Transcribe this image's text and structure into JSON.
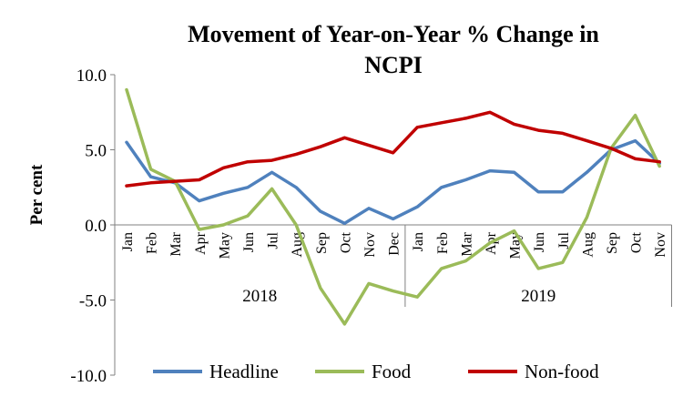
{
  "chart_data": {
    "type": "line",
    "title": "Movement of Year-on-Year % Change in NCPI",
    "title_lines": [
      "Movement of Year-on-Year % Change in",
      "NCPI"
    ],
    "ylabel": "Per cent",
    "xlabel": "",
    "ylim": [
      -10,
      10
    ],
    "yticks": [
      10,
      5,
      0,
      -5,
      -10
    ],
    "ytick_labels": [
      "10.0",
      "5.0",
      "0.0",
      "-5.0",
      "-10.0"
    ],
    "categories": [
      "Jan",
      "Feb",
      "Mar",
      "Apr",
      "May",
      "Jun",
      "Jul",
      "Aug",
      "Sep",
      "Oct",
      "Nov",
      "Dec",
      "Jan",
      "Feb",
      "Mar",
      "Apr",
      "May",
      "Jun",
      "Jul",
      "Aug",
      "Sep",
      "Oct",
      "Nov"
    ],
    "year_groups": [
      {
        "label": "2018",
        "start": 0,
        "count": 12
      },
      {
        "label": "2019",
        "start": 12,
        "count": 11
      }
    ],
    "grid": false,
    "legend_position": "bottom",
    "series": [
      {
        "name": "Headline",
        "color": "#4f81bd",
        "values": [
          5.5,
          3.2,
          2.8,
          1.6,
          2.1,
          2.5,
          3.5,
          2.5,
          0.9,
          0.1,
          1.1,
          0.4,
          1.2,
          2.5,
          3.0,
          3.6,
          3.5,
          2.2,
          2.2,
          3.5,
          5.0,
          5.6,
          4.1
        ]
      },
      {
        "name": "Food",
        "color": "#9bbb59",
        "values": [
          9.0,
          3.7,
          2.9,
          -0.3,
          0.0,
          0.6,
          2.4,
          0.0,
          -4.2,
          -6.6,
          -3.9,
          -4.4,
          -4.8,
          -2.9,
          -2.4,
          -1.2,
          -0.4,
          -2.9,
          -2.5,
          0.5,
          5.1,
          7.3,
          3.9
        ]
      },
      {
        "name": "Non-food",
        "color": "#c00000",
        "values": [
          2.6,
          2.8,
          2.9,
          3.0,
          3.8,
          4.2,
          4.3,
          4.7,
          5.2,
          5.8,
          5.3,
          4.8,
          6.5,
          6.8,
          7.1,
          7.5,
          6.7,
          6.3,
          6.1,
          5.6,
          5.1,
          4.4,
          4.2
        ]
      }
    ]
  }
}
